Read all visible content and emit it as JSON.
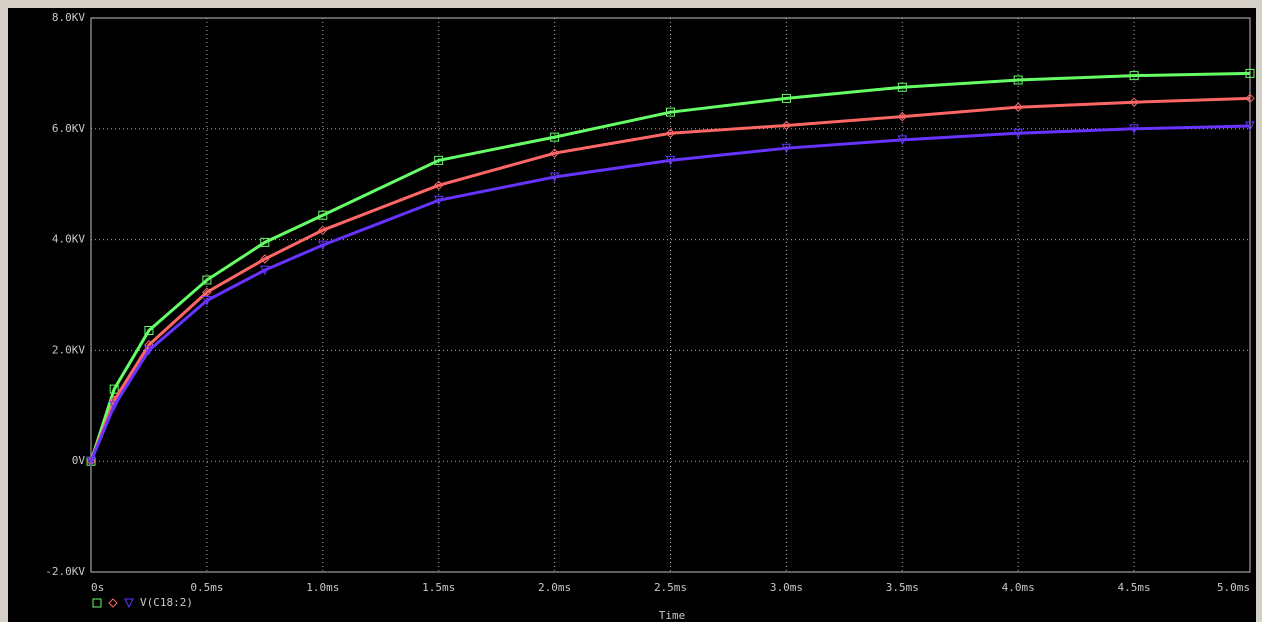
{
  "chart_data": {
    "type": "line",
    "x_label": "Time",
    "legend_text": "V(C18:2)",
    "x": [
      0,
      0.1,
      0.25,
      0.5,
      0.75,
      1.0,
      1.5,
      2.0,
      2.5,
      3.0,
      3.5,
      4.0,
      4.5,
      5.0
    ],
    "series": [
      {
        "color": "#66ff66",
        "marker": "square",
        "values": [
          0,
          1.3,
          2.36,
          3.27,
          3.95,
          4.44,
          5.43,
          5.85,
          6.3,
          6.55,
          6.75,
          6.88,
          6.96,
          7.0
        ]
      },
      {
        "color": "#ff6666",
        "marker": "diamond",
        "values": [
          0,
          1.1,
          2.1,
          3.05,
          3.65,
          4.17,
          4.98,
          5.56,
          5.92,
          6.06,
          6.22,
          6.39,
          6.48,
          6.55
        ]
      },
      {
        "color": "#6633ff",
        "marker": "triangle",
        "values": [
          0,
          1.0,
          2.0,
          2.9,
          3.45,
          3.9,
          4.71,
          5.13,
          5.43,
          5.65,
          5.8,
          5.92,
          6.0,
          6.05
        ]
      }
    ],
    "xlim": [
      0,
      5.0
    ],
    "xticks": [
      {
        "value": 0,
        "label": "0s"
      },
      {
        "value": 0.5,
        "label": "0.5ms"
      },
      {
        "value": 1.0,
        "label": "1.0ms"
      },
      {
        "value": 1.5,
        "label": "1.5ms"
      },
      {
        "value": 2.0,
        "label": "2.0ms"
      },
      {
        "value": 2.5,
        "label": "2.5ms"
      },
      {
        "value": 3.0,
        "label": "3.0ms"
      },
      {
        "value": 3.5,
        "label": "3.5ms"
      },
      {
        "value": 4.0,
        "label": "4.0ms"
      },
      {
        "value": 4.5,
        "label": "4.5ms"
      },
      {
        "value": 5.0,
        "label": "5.0ms"
      }
    ],
    "ylim": [
      -2,
      8
    ],
    "yticks": [
      {
        "value": -2,
        "label": "-2.0KV"
      },
      {
        "value": 0,
        "label": "0V"
      },
      {
        "value": 2,
        "label": "2.0KV"
      },
      {
        "value": 4,
        "label": "4.0KV"
      },
      {
        "value": 6,
        "label": "6.0KV"
      },
      {
        "value": 8,
        "label": "8.0KV"
      }
    ],
    "grid": true
  }
}
